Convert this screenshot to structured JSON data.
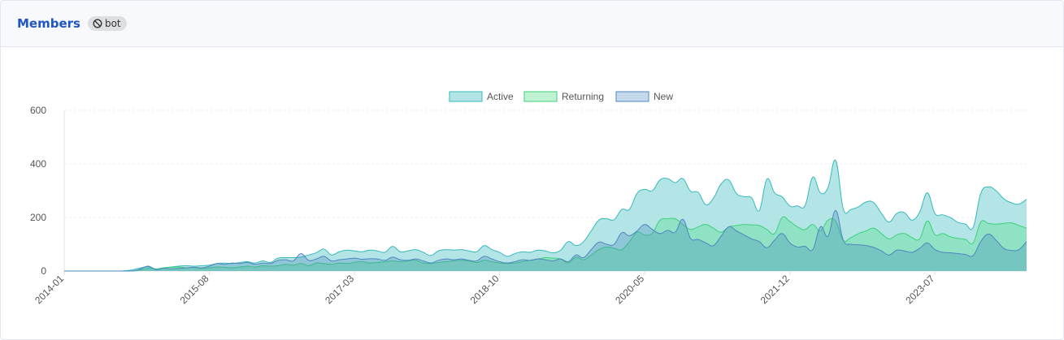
{
  "header": {
    "title": "Members",
    "badge": {
      "icon": "ban-icon",
      "label": "bot"
    }
  },
  "chart_data": {
    "type": "area",
    "ylim": [
      0,
      600
    ],
    "yticks": [
      0,
      200,
      400,
      600
    ],
    "grid": true,
    "legend_position": "top",
    "xtick_labels": [
      "2014-01",
      "2015-08",
      "2017-03",
      "2018-10",
      "2020-05",
      "2021-12",
      "2023-07"
    ],
    "x_start": "2014-01",
    "series": [
      {
        "name": "Active",
        "fill": "#b4e5e6",
        "stroke": "#36b9bc",
        "values": [
          0,
          0,
          0,
          0,
          0,
          0,
          0,
          0,
          1,
          5,
          12,
          16,
          8,
          12,
          15,
          18,
          20,
          18,
          20,
          22,
          28,
          30,
          28,
          32,
          35,
          30,
          38,
          32,
          48,
          50,
          50,
          52,
          60,
          68,
          82,
          60,
          72,
          78,
          75,
          72,
          78,
          75,
          70,
          92,
          72,
          75,
          80,
          70,
          58,
          75,
          80,
          78,
          80,
          75,
          72,
          95,
          80,
          70,
          55,
          65,
          72,
          70,
          78,
          75,
          68,
          78,
          110,
          95,
          110,
          150,
          190,
          195,
          192,
          230,
          230,
          290,
          305,
          300,
          340,
          345,
          330,
          345,
          298,
          294,
          248,
          272,
          325,
          340,
          290,
          278,
          273,
          226,
          343,
          292,
          277,
          243,
          243,
          245,
          350,
          292,
          312,
          413,
          232,
          230,
          240,
          258,
          255,
          215,
          183,
          215,
          218,
          190,
          220,
          292,
          215,
          210,
          200,
          182,
          175,
          163,
          290,
          314,
          300,
          270,
          255,
          250,
          268
        ]
      },
      {
        "name": "Returning",
        "fill": "rgba(74,222,128,0.35)",
        "stroke": "#3dd17a",
        "values": [
          0,
          0,
          0,
          0,
          0,
          0,
          0,
          0,
          0,
          0,
          5,
          10,
          8,
          12,
          14,
          15,
          12,
          14,
          10,
          12,
          15,
          14,
          12,
          15,
          18,
          15,
          20,
          18,
          20,
          25,
          22,
          28,
          20,
          30,
          28,
          25,
          30,
          28,
          32,
          35,
          30,
          32,
          35,
          38,
          35,
          38,
          40,
          30,
          28,
          32,
          35,
          38,
          40,
          38,
          32,
          40,
          35,
          30,
          28,
          30,
          35,
          40,
          45,
          50,
          48,
          45,
          30,
          52,
          42,
          60,
          80,
          90,
          85,
          80,
          110,
          145,
          135,
          141,
          190,
          195,
          195,
          174,
          155,
          165,
          174,
          160,
          145,
          165,
          170,
          174,
          172,
          170,
          155,
          140,
          200,
          185,
          165,
          155,
          174,
          150,
          190,
          186,
          115,
          125,
          140,
          150,
          160,
          140,
          120,
          135,
          140,
          125,
          120,
          187,
          136,
          140,
          128,
          122,
          118,
          105,
          183,
          178,
          175,
          178,
          180,
          170,
          160
        ]
      },
      {
        "name": "New",
        "fill": "rgba(59,130,190,0.3)",
        "stroke": "#4f86bf",
        "values": [
          0,
          0,
          0,
          0,
          0,
          0,
          0,
          0,
          0,
          0,
          8,
          18,
          5,
          10,
          8,
          10,
          12,
          14,
          12,
          18,
          28,
          25,
          30,
          28,
          32,
          25,
          30,
          28,
          40,
          42,
          38,
          65,
          40,
          45,
          55,
          38,
          42,
          45,
          48,
          44,
          46,
          45,
          40,
          52,
          42,
          40,
          45,
          38,
          30,
          40,
          45,
          42,
          45,
          40,
          38,
          55,
          45,
          35,
          30,
          35,
          42,
          40,
          45,
          42,
          38,
          45,
          35,
          60,
          50,
          80,
          108,
          100,
          100,
          143,
          132,
          150,
          174,
          155,
          140,
          152,
          145,
          193,
          122,
          118,
          105,
          95,
          130,
          165,
          150,
          135,
          120,
          110,
          87,
          115,
          140,
          105,
          90,
          92,
          80,
          165,
          130,
          226,
          115,
          100,
          98,
          95,
          88,
          75,
          60,
          78,
          75,
          70,
          85,
          105,
          80,
          70,
          68,
          65,
          62,
          58,
          110,
          138,
          115,
          85,
          77,
          80,
          110
        ]
      }
    ]
  }
}
